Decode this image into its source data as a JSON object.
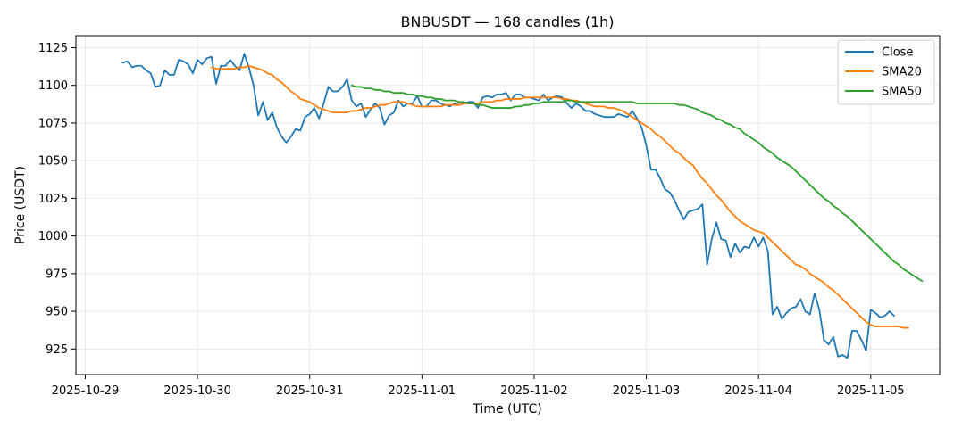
{
  "chart_data": {
    "type": "line",
    "title": "BNBUSDT — 168 candles (1h)",
    "xlabel": "Time (UTC)",
    "ylabel": "Price (USDT)",
    "x_ticks": [
      "2025-10-29",
      "2025-10-30",
      "2025-10-31",
      "2025-11-01",
      "2025-11-02",
      "2025-11-03",
      "2025-11-04",
      "2025-11-05"
    ],
    "y_ticks": [
      925,
      950,
      975,
      1000,
      1025,
      1050,
      1075,
      1100,
      1125
    ],
    "xlim": [
      "2025-10-28T22:00",
      "2025-11-05T14:45"
    ],
    "ylim": [
      908,
      1133
    ],
    "grid": true,
    "legend_position": "top-right",
    "x_start": "2025-10-29T08:00",
    "x_step_hours": 1,
    "colors": {
      "Close": "#1f77b4",
      "SMA20": "#ff7f0e",
      "SMA50": "#2ca02c"
    },
    "series": [
      {
        "name": "Close",
        "values": [
          1115,
          1116,
          1112,
          1113,
          1113,
          1110,
          1108,
          1099,
          1100,
          1110,
          1107,
          1107,
          1117,
          1116,
          1114,
          1108,
          1117,
          1114,
          1118,
          1119,
          1101,
          1113,
          1113,
          1117,
          1113,
          1110,
          1121,
          1112,
          1100,
          1080,
          1089,
          1077,
          1082,
          1072,
          1066,
          1062,
          1066,
          1071,
          1070,
          1079,
          1081,
          1085,
          1078,
          1088,
          1099,
          1096,
          1096,
          1099,
          1104,
          1090,
          1086,
          1088,
          1079,
          1084,
          1088,
          1085,
          1074,
          1080,
          1082,
          1090,
          1086,
          1088,
          1088,
          1093,
          1086,
          1086,
          1090,
          1090,
          1088,
          1087,
          1086,
          1088,
          1087,
          1088,
          1089,
          1089,
          1085,
          1092,
          1093,
          1092,
          1094,
          1094,
          1095,
          1090,
          1094,
          1094,
          1092,
          1092,
          1091,
          1090,
          1094,
          1090,
          1092,
          1093,
          1092,
          1088,
          1085,
          1088,
          1086,
          1083,
          1083,
          1081,
          1080,
          1079,
          1079,
          1079,
          1081,
          1080,
          1079,
          1083,
          1078,
          1072,
          1060,
          1044,
          1044,
          1038,
          1031,
          1029,
          1024,
          1017,
          1011,
          1016,
          1017,
          1018,
          1021,
          981,
          998,
          1009,
          998,
          997,
          986,
          995,
          989,
          993,
          992,
          999,
          993,
          999,
          990,
          948,
          953,
          945,
          949,
          952,
          953,
          958,
          950,
          948,
          962,
          951,
          931,
          928,
          933,
          920,
          921,
          919,
          937,
          937,
          931,
          924,
          951,
          949,
          946,
          947,
          950,
          947
        ]
      },
      {
        "name": "SMA20",
        "start_index": 19,
        "values": [
          1112,
          1111,
          1111,
          1111,
          1111,
          1111,
          1112,
          1112,
          1113,
          1112,
          1111,
          1110,
          1108,
          1107,
          1104,
          1102,
          1099,
          1096,
          1094,
          1091,
          1090,
          1089,
          1087,
          1085,
          1084,
          1083,
          1082,
          1082,
          1082,
          1082,
          1083,
          1083,
          1084,
          1085,
          1085,
          1086,
          1087,
          1087,
          1088,
          1089,
          1089,
          1089,
          1088,
          1087,
          1086,
          1086,
          1086,
          1086,
          1086,
          1086,
          1087,
          1087,
          1087,
          1087,
          1088,
          1088,
          1088,
          1088,
          1089,
          1089,
          1089,
          1090,
          1090,
          1091,
          1091,
          1091,
          1091,
          1092,
          1092,
          1092,
          1092,
          1092,
          1092,
          1092,
          1092,
          1091,
          1091,
          1090,
          1090,
          1089,
          1088,
          1087,
          1086,
          1086,
          1086,
          1085,
          1085,
          1084,
          1083,
          1081,
          1079,
          1077,
          1075,
          1073,
          1071,
          1068,
          1066,
          1063,
          1060,
          1057,
          1055,
          1052,
          1049,
          1047,
          1042,
          1038,
          1035,
          1031,
          1027,
          1024,
          1020,
          1016,
          1013,
          1010,
          1008,
          1006,
          1004,
          1003,
          1002,
          999,
          996,
          993,
          990,
          987,
          984,
          981,
          980,
          978,
          975,
          973,
          971,
          969,
          966,
          964,
          961,
          958,
          955,
          952,
          949,
          946,
          943,
          941,
          940,
          940,
          940,
          940,
          940,
          940,
          939,
          939
        ]
      },
      {
        "name": "SMA50",
        "start_index": 49,
        "values": [
          1100,
          1099,
          1099,
          1098,
          1098,
          1097,
          1097,
          1096,
          1096,
          1095,
          1095,
          1095,
          1094,
          1094,
          1093,
          1093,
          1092,
          1092,
          1091,
          1091,
          1090,
          1090,
          1090,
          1089,
          1089,
          1088,
          1088,
          1087,
          1087,
          1086,
          1085,
          1085,
          1085,
          1085,
          1085,
          1086,
          1086,
          1087,
          1087,
          1088,
          1088,
          1089,
          1089,
          1089,
          1089,
          1089,
          1090,
          1090,
          1089,
          1089,
          1089,
          1089,
          1089,
          1089,
          1089,
          1089,
          1089,
          1089,
          1089,
          1089,
          1089,
          1088,
          1088,
          1088,
          1088,
          1088,
          1088,
          1088,
          1088,
          1088,
          1087,
          1087,
          1086,
          1085,
          1084,
          1082,
          1081,
          1080,
          1078,
          1077,
          1075,
          1074,
          1072,
          1071,
          1068,
          1066,
          1064,
          1062,
          1059,
          1057,
          1055,
          1052,
          1050,
          1048,
          1046,
          1043,
          1040,
          1037,
          1034,
          1031,
          1028,
          1025,
          1023,
          1020,
          1018,
          1015,
          1013,
          1010,
          1007,
          1004,
          1001,
          998,
          995,
          992,
          989,
          986,
          983,
          981,
          978,
          976,
          974,
          972,
          970
        ]
      }
    ]
  }
}
